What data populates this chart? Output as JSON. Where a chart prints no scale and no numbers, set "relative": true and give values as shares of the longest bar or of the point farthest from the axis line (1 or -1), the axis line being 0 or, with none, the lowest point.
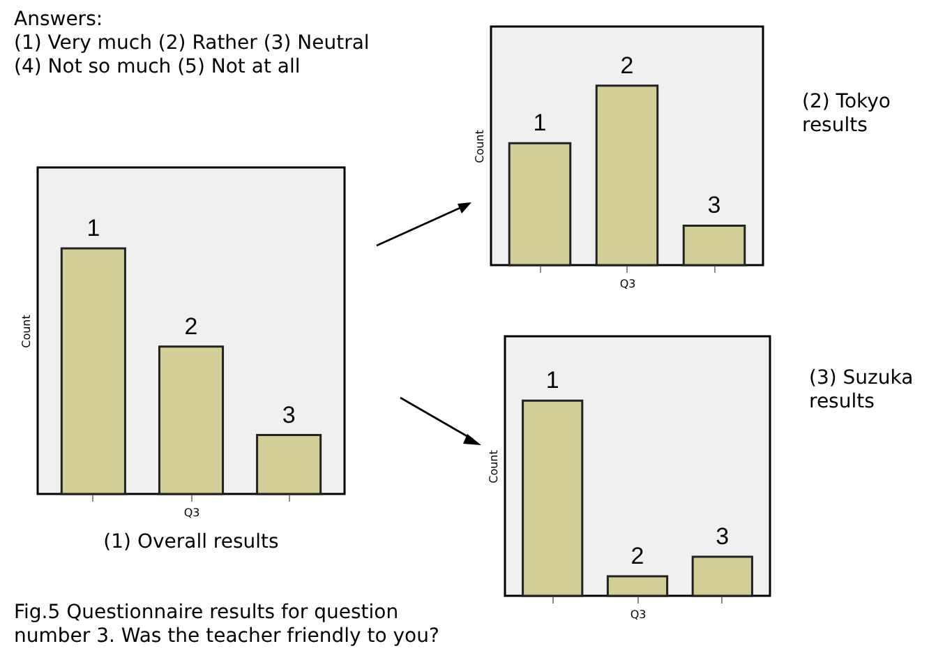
{
  "chart_data": [
    {
      "type": "bar",
      "title": "(1) Overall results",
      "xlabel": "Q3",
      "ylabel": "Count",
      "categories": [
        "1",
        "2",
        "3"
      ],
      "values": [
        1,
        0.6,
        0.24
      ],
      "color": "#d4cf96",
      "relative": true,
      "tick_labels": false,
      "annotations": [
        "Answers:\n(1) Very much (2) Rather (3) Neutral\n(4) Not so much (5) Not at all",
        "Fig.5 Questionnaire results for question\nnumber 3. Was the teacher friendly to you?"
      ]
    },
    {
      "type": "bar",
      "annotations": [
        "(2) Tokyo\nresults"
      ],
      "xlabel": "Q3",
      "ylabel": "Count",
      "categories": [
        "1",
        "2",
        "3"
      ],
      "values": [
        0.68,
        1,
        0.22
      ],
      "color": "#d4cf96",
      "relative": true,
      "tick_labels": false
    },
    {
      "type": "bar",
      "annotations": [
        "(3) Suzuka\nresults"
      ],
      "xlabel": "Q3",
      "ylabel": "Count",
      "categories": [
        "1",
        "2",
        "3"
      ],
      "values": [
        1,
        0.1,
        0.2
      ],
      "color": "#d4cf96",
      "relative": true,
      "tick_labels": false
    }
  ]
}
